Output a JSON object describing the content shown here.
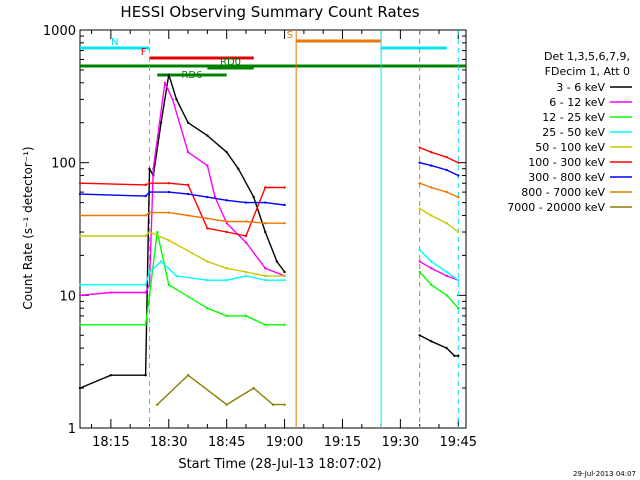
{
  "chart_data": {
    "type": "line",
    "title": "HESSI Observing Summary Count Rates",
    "xlabel": "Start Time (28-Jul-13 18:07:02)",
    "ylabel": "Count Rate (s⁻¹ detector⁻¹)",
    "yscale": "log",
    "ylim": [
      1,
      1000
    ],
    "xlim": [
      "18:07",
      "19:47"
    ],
    "x_ticks": [
      "18:15",
      "18:30",
      "18:45",
      "19:00",
      "19:15",
      "19:30",
      "19:45"
    ],
    "y_ticks": [
      "1",
      "10",
      "100",
      "1000"
    ],
    "grid": false,
    "legend_position": "right",
    "legend_header": [
      "Det 1,3,5,6,7,9,",
      "FDecim 1, Att 0"
    ],
    "timestamp": "29-Jul-2013 04:07",
    "flags": [
      {
        "label": "N",
        "color": "#00e5ee",
        "segments": [
          [
            "18:07",
            "18:25"
          ],
          [
            "19:25",
            "19:42"
          ]
        ]
      },
      {
        "label": "F",
        "color": "#e00000",
        "segments": [
          [
            "18:25",
            "18:52"
          ]
        ]
      },
      {
        "label": "RD0",
        "color": "#008000",
        "segments": [
          [
            "18:40",
            "18:52"
          ]
        ]
      },
      {
        "label": "RD6",
        "color": "#008000",
        "segments": [
          [
            "18:27",
            "18:45"
          ]
        ]
      },
      {
        "label": "S",
        "color": "#ee7700",
        "segments": [
          [
            "19:03",
            "19:25"
          ]
        ]
      },
      {
        "label": "",
        "color": "#008000",
        "segments": [
          [
            "18:07",
            "19:47"
          ]
        ]
      }
    ],
    "vertical_lines": [
      {
        "x": "18:25",
        "color": "#00e5ee",
        "style": "dashed"
      },
      {
        "x": "19:03",
        "color": "#ee7700",
        "style": "solid"
      },
      {
        "x": "19:25",
        "color": "#00e5ee",
        "style": "solid"
      },
      {
        "x": "19:35",
        "color": "#ee7700",
        "style": "dashed"
      },
      {
        "x": "19:45",
        "color": "#00e5ee",
        "style": "dashed"
      }
    ],
    "series": [
      {
        "name": "3 - 6 keV",
        "color": "#000000",
        "segments": [
          {
            "x": [
              "18:07",
              "18:15",
              "18:24",
              "18:25",
              "18:26",
              "18:28",
              "18:30",
              "18:32",
              "18:35",
              "18:40",
              "18:45",
              "18:48",
              "18:52",
              "18:55",
              "18:58",
              "19:00"
            ],
            "y": [
              2.0,
              2.5,
              2.5,
              90,
              80,
              200,
              460,
              300,
              200,
              160,
              120,
              90,
              55,
              30,
              18,
              15
            ]
          },
          {
            "x": [
              "19:35",
              "19:38",
              "19:42",
              "19:44",
              "19:45"
            ],
            "y": [
              5.0,
              4.5,
              4.0,
              3.5,
              3.5
            ]
          }
        ]
      },
      {
        "name": "6 - 12 keV",
        "color": "#ff00ff",
        "segments": [
          {
            "x": [
              "18:07",
              "18:15",
              "18:24",
              "18:25",
              "18:26",
              "18:29",
              "18:31",
              "18:35",
              "18:40",
              "18:42",
              "18:45",
              "18:50",
              "18:55",
              "19:00"
            ],
            "y": [
              10,
              10.5,
              10.5,
              12,
              90,
              400,
              300,
              120,
              95,
              55,
              35,
              25,
              16,
              14
            ]
          },
          {
            "x": [
              "19:35",
              "19:38",
              "19:42",
              "19:45"
            ],
            "y": [
              18,
              16,
              14,
              13
            ]
          }
        ]
      },
      {
        "name": "12 - 25 keV",
        "color": "#00ff00",
        "segments": [
          {
            "x": [
              "18:07",
              "18:24",
              "18:25",
              "18:27",
              "18:30",
              "18:40",
              "18:45",
              "18:50",
              "18:55",
              "19:00"
            ],
            "y": [
              6.0,
              6.0,
              10,
              30,
              12,
              8,
              7,
              7,
              6,
              6
            ]
          },
          {
            "x": [
              "19:35",
              "19:38",
              "19:42",
              "19:45"
            ],
            "y": [
              15,
              12,
              10,
              8
            ]
          }
        ]
      },
      {
        "name": "25 - 50 keV",
        "color": "#00ffff",
        "segments": [
          {
            "x": [
              "18:07",
              "18:24",
              "18:25",
              "18:28",
              "18:32",
              "18:40",
              "18:45",
              "18:50",
              "18:55",
              "19:00"
            ],
            "y": [
              12,
              12,
              15,
              18,
              14,
              13,
              13,
              14,
              13,
              13
            ]
          },
          {
            "x": [
              "19:35",
              "19:38",
              "19:42",
              "19:45"
            ],
            "y": [
              22,
              18,
              15,
              13
            ]
          }
        ]
      },
      {
        "name": "50 - 100 keV",
        "color": "#c8c800",
        "segments": [
          {
            "x": [
              "18:07",
              "18:24",
              "18:25",
              "18:30",
              "18:40",
              "18:45",
              "18:50",
              "18:55",
              "19:00"
            ],
            "y": [
              28,
              28,
              30,
              26,
              18,
              16,
              15,
              14,
              14
            ]
          },
          {
            "x": [
              "19:35",
              "19:38",
              "19:42",
              "19:45"
            ],
            "y": [
              45,
              40,
              35,
              30
            ]
          }
        ]
      },
      {
        "name": "100 - 300 keV",
        "color": "#ff0000",
        "segments": [
          {
            "x": [
              "18:07",
              "18:24",
              "18:25",
              "18:30",
              "18:35",
              "18:40",
              "18:45",
              "18:50",
              "18:55",
              "19:00"
            ],
            "y": [
              70,
              68,
              70,
              70,
              68,
              32,
              30,
              28,
              65,
              65
            ]
          },
          {
            "x": [
              "19:35",
              "19:38",
              "19:42",
              "19:45"
            ],
            "y": [
              130,
              120,
              110,
              100
            ]
          }
        ]
      },
      {
        "name": "300 - 800 keV",
        "color": "#0000ff",
        "segments": [
          {
            "x": [
              "18:07",
              "18:24",
              "18:25",
              "18:30",
              "18:35",
              "18:40",
              "18:45",
              "18:50",
              "18:55",
              "19:00"
            ],
            "y": [
              58,
              56,
              60,
              60,
              58,
              55,
              52,
              50,
              50,
              48
            ]
          },
          {
            "x": [
              "19:35",
              "19:38",
              "19:42",
              "19:45"
            ],
            "y": [
              100,
              95,
              88,
              80
            ]
          }
        ]
      },
      {
        "name": "800 - 7000 keV",
        "color": "#ee7700",
        "segments": [
          {
            "x": [
              "18:07",
              "18:24",
              "18:25",
              "18:30",
              "18:35",
              "18:40",
              "18:45",
              "18:50",
              "18:55",
              "19:00"
            ],
            "y": [
              40,
              40,
              42,
              42,
              40,
              38,
              36,
              36,
              35,
              35
            ]
          },
          {
            "x": [
              "19:35",
              "19:38",
              "19:42",
              "19:45"
            ],
            "y": [
              70,
              65,
              60,
              55
            ]
          }
        ]
      },
      {
        "name": "7000 - 20000 keV",
        "color": "#8b7d00",
        "segments": [
          {
            "x": [
              "18:27",
              "18:35",
              "18:45",
              "18:52",
              "18:57",
              "19:00"
            ],
            "y": [
              1.5,
              2.5,
              1.5,
              2.0,
              1.5,
              1.5
            ]
          }
        ]
      }
    ]
  }
}
